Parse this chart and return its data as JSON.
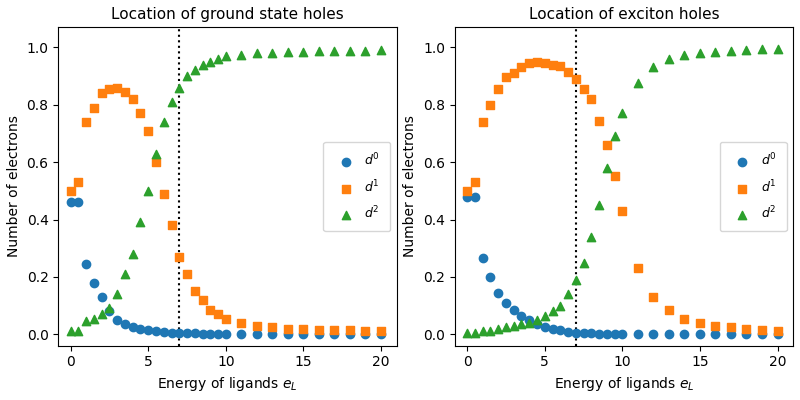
{
  "title_left": "Location of ground state holes",
  "title_right": "Location of exciton holes",
  "xlabel": "Energy of ligands $e_L$",
  "ylabel": "Number of electrons",
  "vline_x": 7.0,
  "gs_d0_x": [
    0,
    0.5,
    1,
    1.5,
    2,
    2.5,
    3,
    3.5,
    4,
    4.5,
    5,
    5.5,
    6,
    6.5,
    7,
    7.5,
    8,
    8.5,
    9,
    9.5,
    10,
    11,
    12,
    13,
    14,
    15,
    16,
    17,
    18,
    19,
    20
  ],
  "gs_d0_y": [
    0.46,
    0.46,
    0.245,
    0.18,
    0.13,
    0.08,
    0.05,
    0.035,
    0.025,
    0.018,
    0.015,
    0.01,
    0.008,
    0.005,
    0.004,
    0.003,
    0.003,
    0.002,
    0.002,
    0.002,
    0.002,
    0.001,
    0.001,
    0.001,
    0.001,
    0.001,
    0.001,
    0.001,
    0.001,
    0.001,
    0.001
  ],
  "gs_d1_x": [
    0,
    0.5,
    1,
    1.5,
    2,
    2.5,
    3,
    3.5,
    4,
    4.5,
    5,
    5.5,
    6,
    6.5,
    7,
    7.5,
    8,
    8.5,
    9,
    9.5,
    10,
    11,
    12,
    13,
    14,
    15,
    16,
    17,
    18,
    19,
    20
  ],
  "gs_d1_y": [
    0.5,
    0.53,
    0.74,
    0.79,
    0.84,
    0.855,
    0.86,
    0.845,
    0.82,
    0.77,
    0.71,
    0.6,
    0.49,
    0.38,
    0.27,
    0.21,
    0.15,
    0.12,
    0.085,
    0.07,
    0.055,
    0.04,
    0.03,
    0.025,
    0.02,
    0.018,
    0.016,
    0.015,
    0.014,
    0.013,
    0.012
  ],
  "gs_d2_x": [
    0,
    0.5,
    1,
    1.5,
    2,
    2.5,
    3,
    3.5,
    4,
    4.5,
    5,
    5.5,
    6,
    6.5,
    7,
    7.5,
    8,
    8.5,
    9,
    9.5,
    10,
    11,
    12,
    13,
    14,
    15,
    16,
    17,
    18,
    19,
    20
  ],
  "gs_d2_y": [
    0.01,
    0.01,
    0.045,
    0.055,
    0.07,
    0.09,
    0.14,
    0.21,
    0.28,
    0.39,
    0.5,
    0.63,
    0.74,
    0.81,
    0.86,
    0.9,
    0.92,
    0.94,
    0.95,
    0.96,
    0.97,
    0.975,
    0.98,
    0.982,
    0.984,
    0.985,
    0.986,
    0.987,
    0.988,
    0.989,
    0.99
  ],
  "ex_d0_x": [
    0,
    0.5,
    1,
    1.5,
    2,
    2.5,
    3,
    3.5,
    4,
    4.5,
    5,
    5.5,
    6,
    6.5,
    7,
    7.5,
    8,
    8.5,
    9,
    9.5,
    10,
    11,
    12,
    13,
    14,
    15,
    16,
    17,
    18,
    19,
    20
  ],
  "ex_d0_y": [
    0.48,
    0.48,
    0.265,
    0.2,
    0.145,
    0.11,
    0.085,
    0.065,
    0.05,
    0.035,
    0.025,
    0.02,
    0.015,
    0.008,
    0.005,
    0.004,
    0.003,
    0.002,
    0.002,
    0.001,
    0.001,
    0.001,
    0.001,
    0.001,
    0.001,
    0.001,
    0.001,
    0.001,
    0.001,
    0.001,
    0.001
  ],
  "ex_d1_x": [
    0,
    0.5,
    1,
    1.5,
    2,
    2.5,
    3,
    3.5,
    4,
    4.5,
    5,
    5.5,
    6,
    6.5,
    7,
    7.5,
    8,
    8.5,
    9,
    9.5,
    10,
    11,
    12,
    13,
    14,
    15,
    16,
    17,
    18,
    19,
    20
  ],
  "ex_d1_y": [
    0.5,
    0.53,
    0.74,
    0.8,
    0.855,
    0.895,
    0.91,
    0.93,
    0.945,
    0.948,
    0.945,
    0.94,
    0.935,
    0.915,
    0.89,
    0.855,
    0.82,
    0.745,
    0.66,
    0.55,
    0.43,
    0.23,
    0.13,
    0.085,
    0.055,
    0.04,
    0.03,
    0.025,
    0.02,
    0.015,
    0.012
  ],
  "ex_d2_x": [
    0,
    0.5,
    1,
    1.5,
    2,
    2.5,
    3,
    3.5,
    4,
    4.5,
    5,
    5.5,
    6,
    6.5,
    7,
    7.5,
    8,
    8.5,
    9,
    9.5,
    10,
    11,
    12,
    13,
    14,
    15,
    16,
    17,
    18,
    19,
    20
  ],
  "ex_d2_y": [
    0.005,
    0.005,
    0.01,
    0.01,
    0.02,
    0.025,
    0.03,
    0.035,
    0.04,
    0.05,
    0.065,
    0.08,
    0.1,
    0.14,
    0.19,
    0.25,
    0.34,
    0.45,
    0.58,
    0.69,
    0.77,
    0.875,
    0.93,
    0.96,
    0.975,
    0.98,
    0.985,
    0.988,
    0.99,
    0.993,
    0.995
  ],
  "color_d0": "#1f77b4",
  "color_d1": "#ff7f0e",
  "color_d2": "#2ca02c",
  "xlim": [
    -0.8,
    21
  ],
  "ylim": [
    -0.04,
    1.07
  ],
  "marker_d0": "o",
  "marker_d1": "s",
  "marker_d2": "^",
  "markersize": 36
}
